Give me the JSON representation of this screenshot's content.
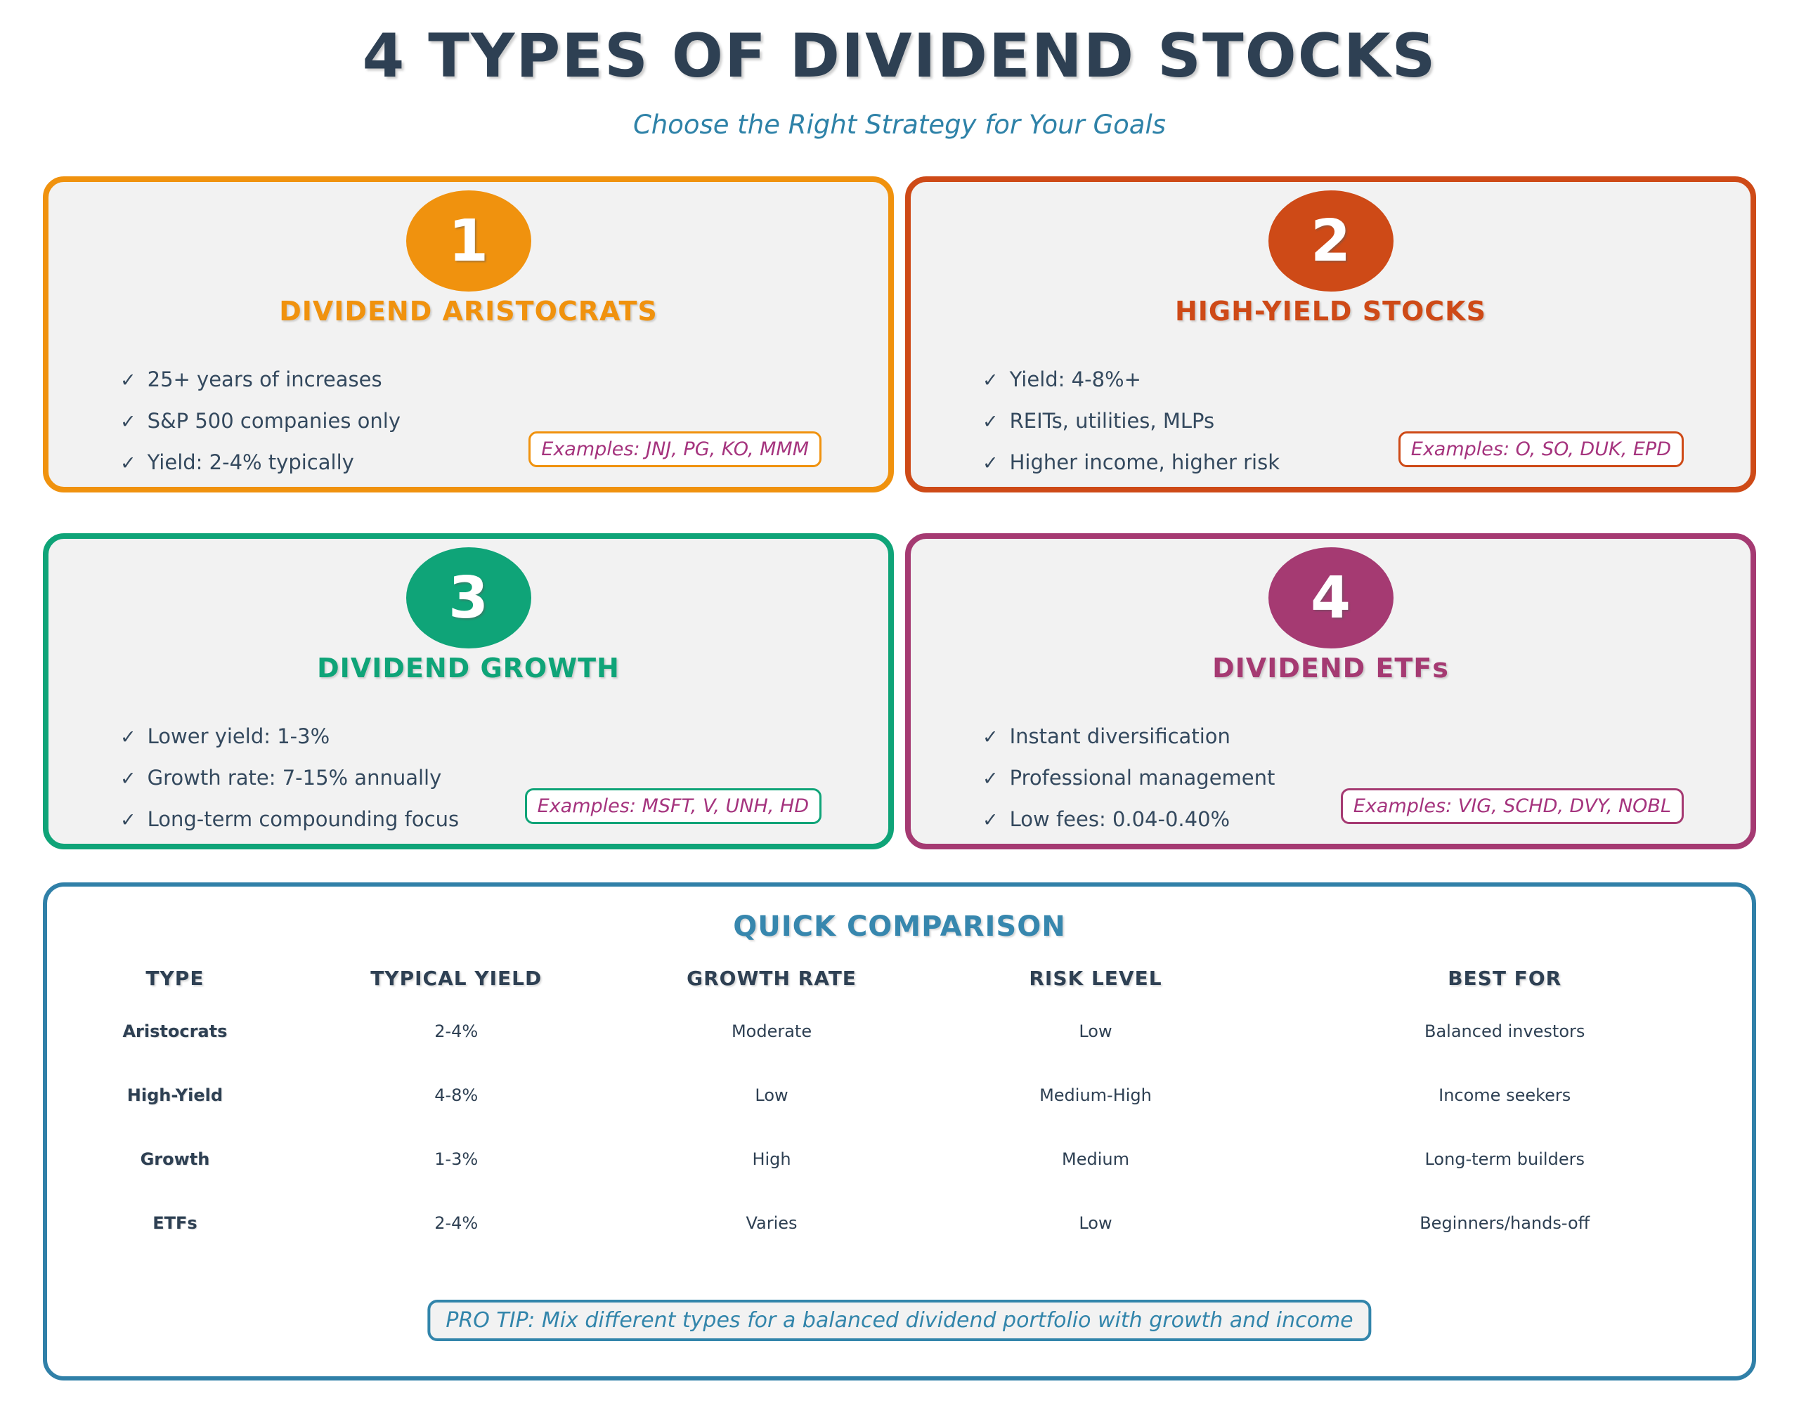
{
  "header": {
    "title": "4 TYPES OF DIVIDEND STOCKS",
    "subtitle": "Choose the Right Strategy for Your Goals"
  },
  "glyphs": {
    "check": "✓"
  },
  "colors": {
    "title_navy": "#2E4053",
    "body_navy": "#34495E",
    "teal_accent": "#3080A8",
    "example_text": "#A5347E",
    "card_background": "#F2F2F2"
  },
  "cards": [
    {
      "number": "1",
      "title": "DIVIDEND ARISTOCRATS",
      "accent": "#F0920E",
      "items": [
        "25+ years of increases",
        "S&P 500 companies only",
        "Yield: 2-4% typically"
      ],
      "examples": "Examples: JNJ, PG, KO, MMM"
    },
    {
      "number": "2",
      "title": "HIGH-YIELD STOCKS",
      "accent": "#CE4A17",
      "items": [
        "Yield: 4-8%+",
        "REITs, utilities, MLPs",
        "Higher income, higher risk"
      ],
      "examples": "Examples: O, SO, DUK, EPD"
    },
    {
      "number": "3",
      "title": "DIVIDEND GROWTH",
      "accent": "#0FA478",
      "items": [
        "Lower yield: 1-3%",
        "Growth rate: 7-15% annually",
        "Long-term compounding focus"
      ],
      "examples": "Examples: MSFT, V, UNH, HD"
    },
    {
      "number": "4",
      "title": "DIVIDEND ETFs",
      "accent": "#A53A72",
      "items": [
        "Instant diversification",
        "Professional management",
        "Low fees: 0.04-0.40%"
      ],
      "examples": "Examples: VIG, SCHD, DVY, NOBL"
    }
  ],
  "comparison": {
    "title": "QUICK COMPARISON",
    "headers": [
      "TYPE",
      "TYPICAL YIELD",
      "GROWTH RATE",
      "RISK LEVEL",
      "BEST FOR"
    ],
    "rows": [
      [
        "Aristocrats",
        "2-4%",
        "Moderate",
        "Low",
        "Balanced investors"
      ],
      [
        "High-Yield",
        "4-8%",
        "Low",
        "Medium-High",
        "Income seekers"
      ],
      [
        "Growth",
        "1-3%",
        "High",
        "Medium",
        "Long-term builders"
      ],
      [
        "ETFs",
        "2-4%",
        "Varies",
        "Low",
        "Beginners/hands-off"
      ]
    ],
    "pro_tip": "PRO TIP: Mix different types for a balanced dividend portfolio with growth and income"
  }
}
